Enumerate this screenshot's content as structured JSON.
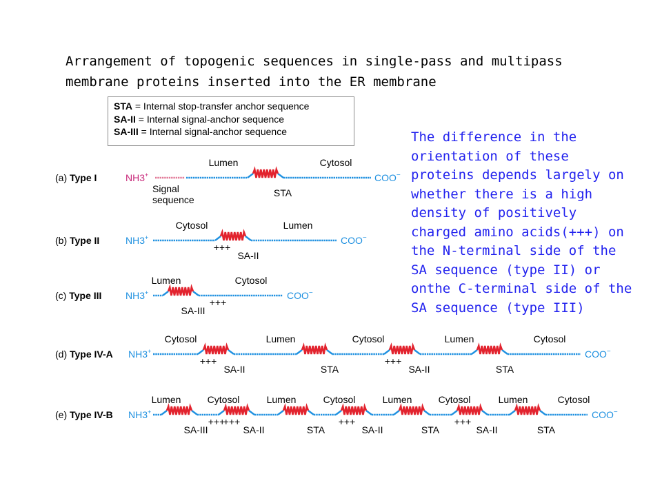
{
  "title_line1": "Arrangement of topogenic sequences in single-pass and multipass",
  "title_line2": "membrane proteins inserted into the ER membrane",
  "legend": [
    {
      "abbr": "STA",
      "text": " = Internal stop-transfer anchor sequence"
    },
    {
      "abbr": "SA-II",
      "text": " = Internal signal-anchor sequence"
    },
    {
      "abbr": "SA-III",
      "text": " = Internal signal-anchor sequence"
    }
  ],
  "note": "The difference in the orientation of these proteins depends largely on whether there is a high density of positively charged amino acids(+++) on the N-terminal side of the SA sequence (type II) or onthe C-terminal side of the SA sequence (type III)",
  "terminals": {
    "n": "NH3",
    "n_charge": "+",
    "c": "COO",
    "c_charge": "−"
  },
  "colors": {
    "chain": "#1e90e0",
    "helix": "#e2232e",
    "signal": "#e27a98",
    "note": "#2222ee"
  },
  "rows": [
    {
      "label": "(a) Type I",
      "n_signal_seq": true,
      "signal_label": "Signal\nsequence",
      "top_labels": [
        "Lumen",
        "Cytosol"
      ],
      "helices": [
        {
          "name": "STA",
          "plus": ""
        }
      ]
    },
    {
      "label": "(b) Type II",
      "n_signal_seq": false,
      "top_labels": [
        "Cytosol",
        "Lumen"
      ],
      "helices": [
        {
          "name": "SA-II",
          "plus": "+++"
        }
      ]
    },
    {
      "label": "(c) Type III",
      "n_signal_seq": false,
      "top_labels": [
        "Lumen",
        "Cytosol"
      ],
      "helices": [
        {
          "name": "SA-III",
          "plus": "+++"
        }
      ]
    },
    {
      "label": "(d) Type IV-A",
      "n_signal_seq": false,
      "top_labels": [
        "Cytosol",
        "Lumen",
        "Cytosol",
        "Lumen",
        "Cytosol"
      ],
      "helices": [
        {
          "name": "SA-II",
          "plus": "+++"
        },
        {
          "name": "STA",
          "plus": ""
        },
        {
          "name": "SA-II",
          "plus": "+++"
        },
        {
          "name": "STA",
          "plus": ""
        }
      ]
    },
    {
      "label": "(e) Type IV-B",
      "n_signal_seq": false,
      "top_labels": [
        "Lumen",
        "Cytosol",
        "Lumen",
        "Cytosol",
        "Lumen",
        "Cytosol",
        "Lumen",
        "Cytosol"
      ],
      "helices": [
        {
          "name": "SA-III",
          "plus": "+++"
        },
        {
          "name": "SA-II",
          "plus": "+++"
        },
        {
          "name": "STA",
          "plus": ""
        },
        {
          "name": "SA-II",
          "plus": "+++"
        },
        {
          "name": "STA",
          "plus": ""
        },
        {
          "name": "SA-II",
          "plus": "+++"
        },
        {
          "name": "STA",
          "plus": ""
        }
      ]
    }
  ]
}
